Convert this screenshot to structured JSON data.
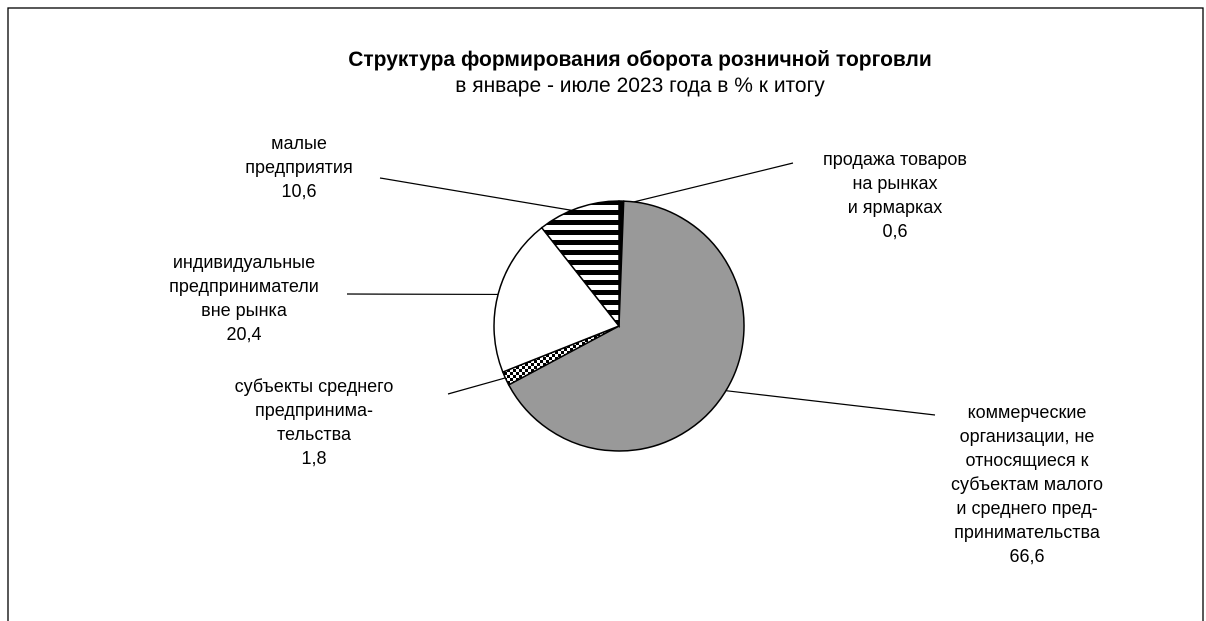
{
  "chart_data": {
    "type": "pie",
    "title": "Структура формирования оборота розничной торговли",
    "subtitle": "в январе - июле 2023 года в % к итогу",
    "slices": [
      {
        "label": [
          "продажа товаров",
          "на рынках",
          "и ярмарках"
        ],
        "value": 0.6,
        "value_label": "0,6",
        "fill": "solid-black"
      },
      {
        "label": [
          "коммерческие",
          "организации, не",
          "относящиеся к",
          "субъектам малого",
          "и среднего пред-",
          "принимательства"
        ],
        "value": 66.6,
        "value_label": "66,6",
        "fill": "#999999"
      },
      {
        "label": [
          "субъекты среднего",
          "предпринима-",
          "тельства"
        ],
        "value": 1.8,
        "value_label": "1,8",
        "fill": "checker-pattern"
      },
      {
        "label": [
          "индивидуальные",
          "предприниматели",
          "вне рынка"
        ],
        "value": 20.4,
        "value_label": "20,4",
        "fill": "#ffffff"
      },
      {
        "label": [
          "малые",
          "предприятия"
        ],
        "value": 10.6,
        "value_label": "10,6",
        "fill": "horizontal-stripes"
      }
    ],
    "start_angle": "12 o'clock",
    "direction": "clockwise",
    "legend": "none"
  }
}
